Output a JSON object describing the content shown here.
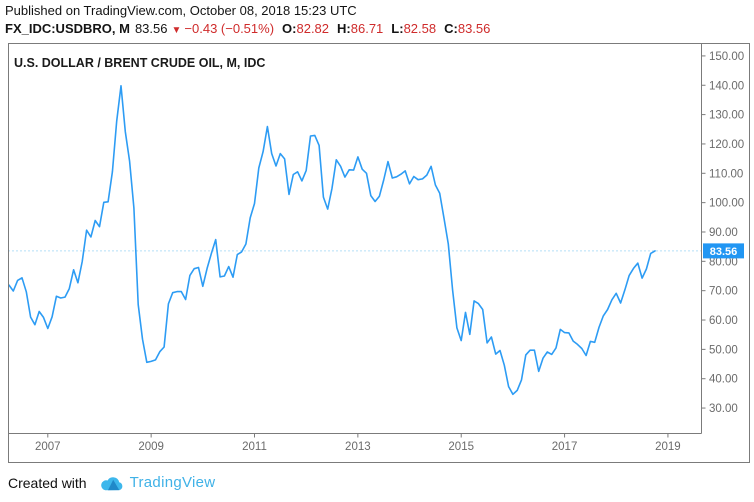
{
  "page": {
    "published_line": "Published on TradingView.com, October 08, 2018 15:23 UTC",
    "footer": {
      "created_with": "Created with",
      "brand": "TradingView"
    }
  },
  "ticker": {
    "symbol": "FX_IDC:USDBRO, M",
    "last": "83.56",
    "direction_glyph": "▼",
    "change": "−0.43 (−0.51%)",
    "ohlc": [
      {
        "label": "O:",
        "value": "82.82"
      },
      {
        "label": "H:",
        "value": "86.71"
      },
      {
        "label": "L:",
        "value": "82.58"
      },
      {
        "label": "C:",
        "value": "83.56"
      }
    ]
  },
  "colors": {
    "negative_red": "#cf2b2b",
    "line_blue": "#2d9cf4",
    "price_box_blue": "#2196f3",
    "price_dotted_blue": "#b5dff7",
    "axis_text_gray": "#6b6b6b",
    "frame_gray": "#7b7b7b",
    "title_black": "#1a1a1a",
    "brand_blue": "#40b2e7",
    "logo_light_blue": "#3db7ec",
    "logo_dark_blue": "#2089c9"
  },
  "chart_data": {
    "type": "line",
    "title": "U.S. DOLLAR / BRENT CRUDE OIL, M, IDC",
    "xlabel": "",
    "ylabel": "",
    "grid": false,
    "legend": false,
    "x_ticks": [
      "2007",
      "2009",
      "2011",
      "2013",
      "2015",
      "2017",
      "2019"
    ],
    "x_tick_years": [
      2007,
      2009,
      2011,
      2013,
      2015,
      2017,
      2019
    ],
    "y_ticks": [
      "150.00",
      "140.00",
      "130.00",
      "120.00",
      "110.00",
      "100.00",
      "90.00",
      "80.00",
      "70.00",
      "60.00",
      "50.00",
      "40.00",
      "30.00"
    ],
    "y_tick_values": [
      150,
      140,
      130,
      120,
      110,
      100,
      90,
      80,
      70,
      60,
      50,
      40,
      30
    ],
    "xlim_years": [
      2006.23,
      2019.64
    ],
    "ylim": [
      21.5,
      154.4
    ],
    "last_price": 83.56,
    "last_price_label": "83.56",
    "series": [
      {
        "name": "USDBRO monthly close",
        "start_month": "2006-04",
        "interval": "1M",
        "values": [
          71.9,
          69.9,
          73.5,
          74.4,
          69.6,
          61.0,
          58.4,
          62.9,
          60.9,
          57.1,
          61.1,
          68.1,
          67.5,
          67.8,
          70.7,
          77.1,
          72.7,
          79.9,
          90.6,
          88.3,
          93.9,
          91.8,
          100.1,
          100.3,
          110.5,
          127.8,
          139.8,
          124.2,
          114.1,
          98.2,
          65.3,
          53.5,
          45.6,
          45.9,
          46.4,
          49.2,
          50.8,
          65.5,
          69.3,
          69.7,
          69.7,
          67.0,
          75.2,
          77.5,
          77.9,
          71.5,
          77.6,
          82.7,
          87.4,
          74.7,
          75.0,
          78.2,
          74.6,
          82.3,
          83.2,
          85.9,
          94.8,
          99.7,
          111.8,
          117.4,
          125.9,
          116.7,
          112.5,
          116.7,
          114.9,
          102.8,
          109.6,
          110.5,
          107.4,
          111.0,
          122.7,
          122.9,
          119.5,
          101.9,
          97.8,
          104.9,
          114.6,
          112.4,
          108.7,
          111.2,
          111.1,
          115.6,
          111.4,
          110.0,
          102.4,
          100.4,
          102.2,
          107.7,
          114.0,
          108.4,
          108.8,
          109.7,
          110.8,
          106.4,
          108.9,
          107.8,
          108.1,
          109.4,
          112.4,
          106.0,
          103.2,
          94.7,
          85.9,
          70.2,
          57.3,
          53.0,
          62.6,
          55.1,
          66.5,
          65.6,
          63.6,
          52.2,
          54.2,
          48.4,
          49.6,
          44.6,
          37.3,
          34.7,
          36.0,
          39.6,
          48.1,
          49.7,
          49.7,
          42.5,
          47.0,
          49.1,
          48.3,
          50.5,
          56.8,
          55.7,
          55.6,
          52.8,
          51.7,
          50.3,
          47.9,
          52.7,
          52.4,
          57.5,
          61.4,
          63.6,
          66.9,
          69.1,
          65.8,
          70.3,
          75.2,
          77.6,
          79.4,
          74.3,
          77.4,
          82.7,
          83.56
        ]
      }
    ]
  }
}
